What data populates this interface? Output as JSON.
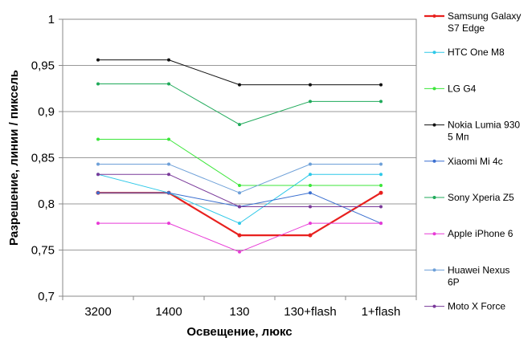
{
  "chart_data": {
    "type": "line",
    "title": "",
    "xlabel": "Освещение,  люкс",
    "ylabel": "Разрешение,  линии / пиксель",
    "categories": [
      "3200",
      "1400",
      "130",
      "130+flash",
      "1+flash"
    ],
    "ylim": [
      0.7,
      1.0
    ],
    "yticks": [
      {
        "value": 0.7,
        "label": "0,7"
      },
      {
        "value": 0.75,
        "label": "0,75"
      },
      {
        "value": 0.8,
        "label": "0,8"
      },
      {
        "value": 0.85,
        "label": "0,85"
      },
      {
        "value": 0.9,
        "label": "0,9"
      },
      {
        "value": 0.95,
        "label": "0,95"
      },
      {
        "value": 1.0,
        "label": "1"
      }
    ],
    "grid": "horizontal",
    "legend": "right",
    "series": [
      {
        "name": "Samsung Galaxy S7 Edge",
        "legend_lines": [
          "Samsung Galaxy",
          "S7 Edge"
        ],
        "color": "#e8201e",
        "width": 2.2,
        "values": [
          0.812,
          0.812,
          0.766,
          0.766,
          0.812
        ]
      },
      {
        "name": "HTC One M8",
        "legend_lines": [
          "HTC One M8"
        ],
        "color": "#2ec8e8",
        "width": 1,
        "values": [
          0.832,
          0.812,
          0.779,
          0.832,
          0.832
        ]
      },
      {
        "name": "LG G4",
        "legend_lines": [
          "LG G4"
        ],
        "color": "#3ce63a",
        "width": 1,
        "values": [
          0.87,
          0.87,
          0.82,
          0.82,
          0.82
        ]
      },
      {
        "name": "Nokia Lumia 930 5 Мп",
        "legend_lines": [
          "Nokia Lumia 930",
          "5 Мп"
        ],
        "color": "#111111",
        "width": 1,
        "values": [
          0.956,
          0.956,
          0.929,
          0.929,
          0.929
        ]
      },
      {
        "name": "Xiaomi Mi 4c",
        "legend_lines": [
          "Xiaomi Mi 4c"
        ],
        "color": "#3a6fd0",
        "width": 1,
        "values": [
          0.812,
          0.812,
          0.797,
          0.812,
          0.779
        ]
      },
      {
        "name": "Sony Xperia Z5",
        "legend_lines": [
          "Sony Xperia Z5"
        ],
        "color": "#1faa5a",
        "width": 1,
        "values": [
          0.93,
          0.93,
          0.886,
          0.911,
          0.911
        ]
      },
      {
        "name": "Apple iPhone 6",
        "legend_lines": [
          "Apple iPhone 6"
        ],
        "color": "#e83ad6",
        "width": 1,
        "values": [
          0.779,
          0.779,
          0.748,
          0.779,
          0.779
        ]
      },
      {
        "name": "Huawei Nexus 6P",
        "legend_lines": [
          "Huawei Nexus",
          "6P"
        ],
        "color": "#6ea0d8",
        "width": 1,
        "values": [
          0.843,
          0.843,
          0.812,
          0.843,
          0.843
        ]
      },
      {
        "name": "Moto X Force",
        "legend_lines": [
          "Moto X Force"
        ],
        "color": "#7a3a9a",
        "width": 1,
        "values": [
          0.832,
          0.832,
          0.797,
          0.797,
          0.797
        ]
      }
    ]
  }
}
